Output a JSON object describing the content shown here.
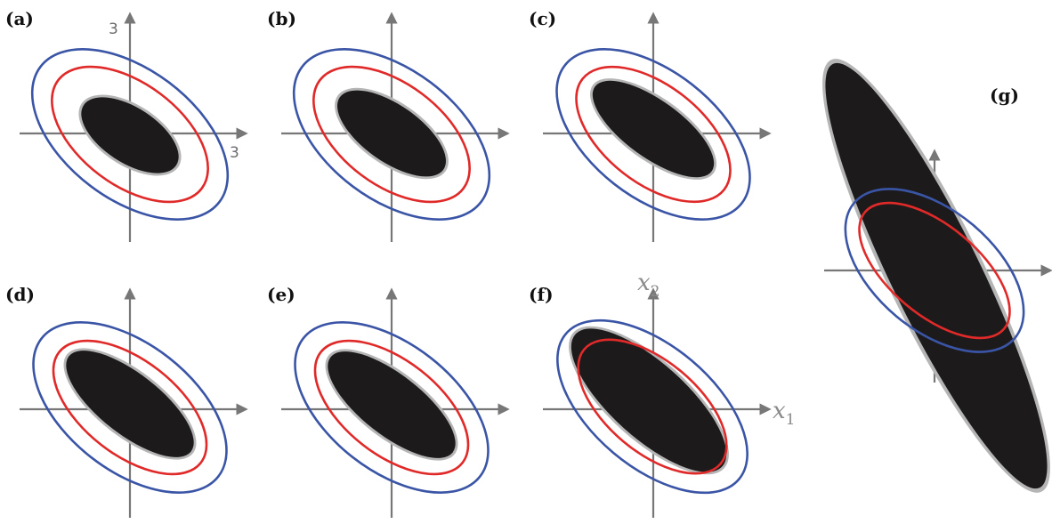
{
  "figure": {
    "colors": {
      "axes": "#777777",
      "samples": "#1c1a1a",
      "sample_fringe": "#b5b5b5",
      "outer_ellipse": "#3b55a6",
      "inner_ellipse": "#e02a2a"
    },
    "panels": [
      {
        "id": "a",
        "label": "(a)"
      },
      {
        "id": "b",
        "label": "(b)"
      },
      {
        "id": "c",
        "label": "(c)"
      },
      {
        "id": "d",
        "label": "(d)"
      },
      {
        "id": "e",
        "label": "(e)"
      },
      {
        "id": "f",
        "label": "(f)"
      },
      {
        "id": "g",
        "label": "(g)"
      }
    ],
    "tick_labels": {
      "x_max": "3",
      "y_max": "3"
    },
    "axis_names": {
      "x": {
        "var": "x",
        "sub": "1"
      },
      "y": {
        "var": "x",
        "sub": "2"
      }
    }
  }
}
